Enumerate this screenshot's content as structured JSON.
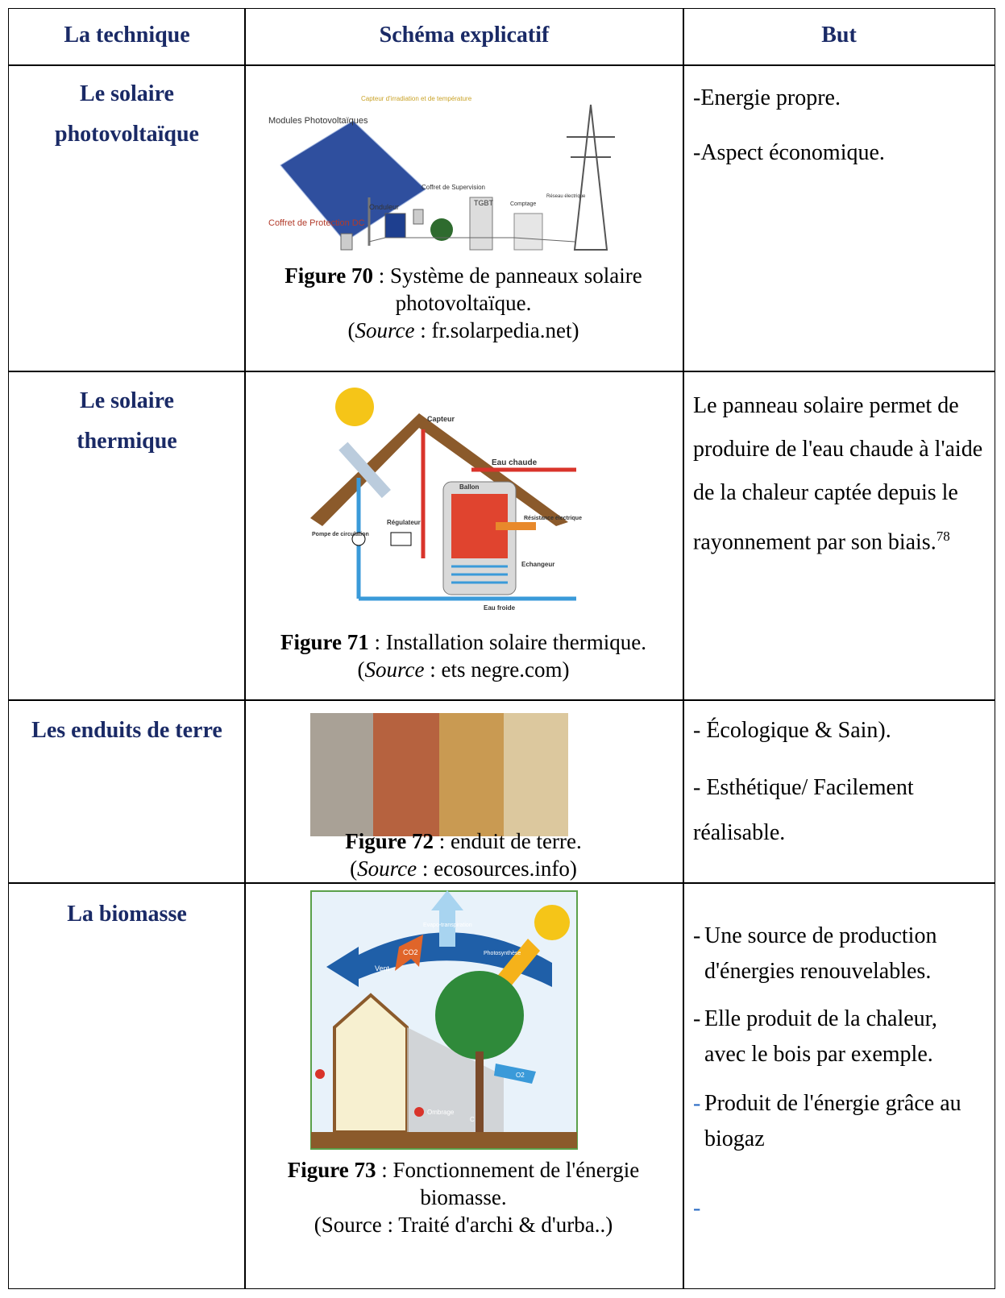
{
  "table": {
    "header": [
      "La technique",
      "Schéma explicatif",
      "But"
    ],
    "rows": [
      {
        "technique": "Le solaire photovoltaïque",
        "figure": {
          "labels": [
            "Modules Photovoltaïques",
            "Capteur d'irradiation et de température",
            "Coffret de Supervision",
            "TGBT",
            "Comptage",
            "Réseau électrique",
            "Coffret de Protection DC",
            "Onduleur"
          ],
          "caption": {
            "number": "Figure 70",
            "text": " : Système de panneaux solaire photovoltaïque.",
            "source_open": "(",
            "source_label": "Source",
            "source_text": " : fr.solarpedia.net)"
          }
        },
        "goals": [
          {
            "text": "-Energie propre."
          },
          {
            "text": "-Aspect économique."
          }
        ]
      },
      {
        "technique": "Le solaire thermique",
        "figure": {
          "labels": [
            "Capteur",
            "Eau chaude",
            "Ballon",
            "Régulateur",
            "Résistance électrique",
            "Pompe de circulation",
            "Echangeur",
            "Eau froide"
          ],
          "caption": {
            "number": "Figure 71",
            "text": " : Installation solaire thermique. (",
            "source_label": "Source",
            "source_text": " : ets negre.com)"
          }
        },
        "paragraph": "Le panneau solaire permet de produire de l'eau chaude à l'aide de la chaleur captée depuis le rayonnement par son biais.",
        "note": "78"
      },
      {
        "technique": "Les enduits de terre",
        "figure": {
          "caption": {
            "number": "Figure 72",
            "text": " : enduit de terre.",
            "source_open": "(",
            "source_label": "Source",
            "source_text": " : ecosources.info)"
          }
        },
        "goals": [
          {
            "text": "- Écologique & Sain)."
          },
          {
            "text": "- Esthétique/ Facilement réalisable."
          }
        ]
      },
      {
        "technique": "La biomasse",
        "figure": {
          "labels": [
            "Vent",
            "CO2",
            "Evapo-transpiration",
            "Photosynthèse",
            "O2",
            "Ombrage",
            "C"
          ],
          "caption": {
            "number": "Figure 73",
            "text": " : Fonctionnement de l'énergie biomasse.",
            "source_plain": "(Source : Traité d'archi & d'urba..)"
          }
        },
        "goals": [
          {
            "marker": "-",
            "text": "Une source de production d'énergies renouvelables."
          },
          {
            "marker": "-",
            "text": "Elle produit de la chaleur, avec le bois par exemple."
          },
          {
            "marker": "-",
            "text": "Produit de l'énergie grâce au biogaz"
          },
          {
            "marker": "-"
          }
        ]
      }
    ]
  }
}
